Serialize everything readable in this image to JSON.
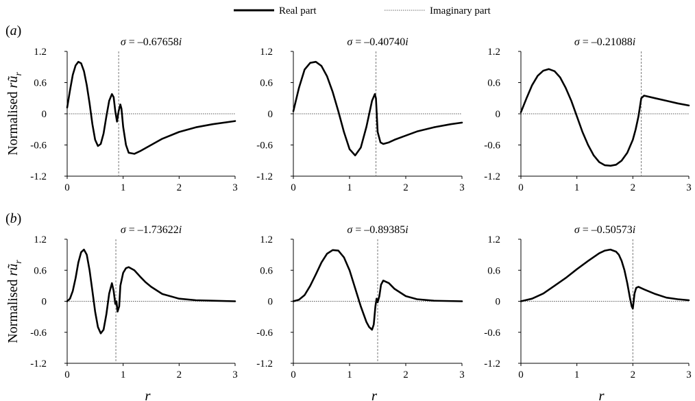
{
  "legend": {
    "real_label": "Real part",
    "imag_label": "Imaginary part"
  },
  "rows": [
    {
      "label_pre": "(",
      "label_letter": "a",
      "label_post": ")"
    },
    {
      "label_pre": "(",
      "label_letter": "b",
      "label_post": ")"
    }
  ],
  "ylabel_pre": "Normalised ",
  "ylabel_r": "r",
  "ylabel_u": "ũ",
  "ylabel_sub": "r",
  "xlabel": "r",
  "chart_data": [
    {
      "type": "line",
      "title_pre": "σ = –",
      "title_val": "0.67658",
      "title_i": "i",
      "xlim": [
        0,
        3
      ],
      "ylim": [
        -1.2,
        1.2
      ],
      "xticks": [
        "0",
        "1",
        "2",
        "3"
      ],
      "yticks": [
        "1.2",
        "0.6",
        "0",
        "-0.6",
        "-1.2"
      ],
      "marker_x": 0.92,
      "series": [
        {
          "name": "Real part",
          "x": [
            0,
            0.05,
            0.1,
            0.15,
            0.2,
            0.25,
            0.3,
            0.35,
            0.4,
            0.45,
            0.5,
            0.55,
            0.6,
            0.65,
            0.7,
            0.75,
            0.8,
            0.83,
            0.86,
            0.89,
            0.92,
            0.95,
            0.97,
            1.0,
            1.05,
            1.1,
            1.2,
            1.3,
            1.5,
            1.7,
            2.0,
            2.3,
            2.6,
            3.0
          ],
          "y": [
            0.12,
            0.45,
            0.75,
            0.93,
            1.0,
            0.97,
            0.82,
            0.55,
            0.2,
            -0.2,
            -0.5,
            -0.62,
            -0.58,
            -0.38,
            -0.05,
            0.25,
            0.38,
            0.32,
            0.05,
            -0.15,
            0.05,
            0.18,
            0.1,
            -0.25,
            -0.6,
            -0.75,
            -0.77,
            -0.72,
            -0.6,
            -0.48,
            -0.35,
            -0.26,
            -0.2,
            -0.14
          ]
        },
        {
          "name": "Imaginary part",
          "x": [
            0,
            3
          ],
          "y": [
            0,
            0
          ]
        }
      ]
    },
    {
      "type": "line",
      "title_pre": "σ = –",
      "title_val": "0.40740",
      "title_i": "i",
      "xlim": [
        0,
        3
      ],
      "ylim": [
        -1.2,
        1.2
      ],
      "xticks": [
        "0",
        "1",
        "2",
        "3"
      ],
      "yticks": [
        "1.2",
        "0.6",
        "0",
        "-0.6",
        "-1.2"
      ],
      "marker_x": 1.47,
      "series": [
        {
          "name": "Real part",
          "x": [
            0,
            0.1,
            0.2,
            0.3,
            0.4,
            0.5,
            0.6,
            0.7,
            0.8,
            0.9,
            1.0,
            1.1,
            1.2,
            1.3,
            1.35,
            1.4,
            1.45,
            1.47,
            1.5,
            1.55,
            1.6,
            1.7,
            1.8,
            2.0,
            2.2,
            2.5,
            2.8,
            3.0
          ],
          "y": [
            0.05,
            0.5,
            0.85,
            0.98,
            1.0,
            0.92,
            0.72,
            0.42,
            0.05,
            -0.35,
            -0.68,
            -0.8,
            -0.65,
            -0.25,
            0.0,
            0.25,
            0.38,
            0.3,
            -0.35,
            -0.55,
            -0.58,
            -0.55,
            -0.5,
            -0.42,
            -0.34,
            -0.26,
            -0.2,
            -0.17
          ]
        },
        {
          "name": "Imaginary part",
          "x": [
            0,
            3
          ],
          "y": [
            0,
            0
          ]
        }
      ]
    },
    {
      "type": "line",
      "title_pre": "σ = –",
      "title_val": "0.21088",
      "title_i": "i",
      "xlim": [
        0,
        3
      ],
      "ylim": [
        -1.2,
        1.2
      ],
      "xticks": [
        "0",
        "1",
        "2",
        "3"
      ],
      "yticks": [
        "1.2",
        "0.6",
        "0",
        "-0.6",
        "-1.2"
      ],
      "marker_x": 2.15,
      "series": [
        {
          "name": "Real part",
          "x": [
            0,
            0.1,
            0.2,
            0.3,
            0.4,
            0.5,
            0.6,
            0.7,
            0.8,
            0.9,
            1.0,
            1.1,
            1.2,
            1.3,
            1.4,
            1.5,
            1.6,
            1.7,
            1.8,
            1.9,
            2.0,
            2.05,
            2.1,
            2.15,
            2.2,
            2.4,
            2.6,
            2.8,
            3.0
          ],
          "y": [
            0.03,
            0.3,
            0.55,
            0.73,
            0.83,
            0.86,
            0.82,
            0.7,
            0.5,
            0.25,
            -0.05,
            -0.35,
            -0.6,
            -0.8,
            -0.93,
            -0.99,
            -1.0,
            -0.98,
            -0.9,
            -0.75,
            -0.5,
            -0.3,
            -0.05,
            0.3,
            0.35,
            0.3,
            0.25,
            0.2,
            0.16
          ]
        },
        {
          "name": "Imaginary part",
          "x": [
            0,
            3
          ],
          "y": [
            0,
            0
          ]
        }
      ]
    },
    {
      "type": "line",
      "title_pre": "σ = –",
      "title_val": "1.73622",
      "title_i": "i",
      "xlim": [
        0,
        3
      ],
      "ylim": [
        -1.2,
        1.2
      ],
      "xticks": [
        "0",
        "1",
        "2",
        "3"
      ],
      "yticks": [
        "1.2",
        "0.6",
        "0",
        "-0.6",
        "-1.2"
      ],
      "marker_x": 0.87,
      "series": [
        {
          "name": "Real part",
          "x": [
            0,
            0.05,
            0.1,
            0.15,
            0.2,
            0.25,
            0.3,
            0.35,
            0.4,
            0.45,
            0.5,
            0.55,
            0.6,
            0.65,
            0.7,
            0.75,
            0.8,
            0.83,
            0.86,
            0.88,
            0.9,
            0.93,
            0.95,
            1.0,
            1.05,
            1.1,
            1.2,
            1.3,
            1.4,
            1.5,
            1.7,
            2.0,
            2.3,
            2.6,
            3.0
          ],
          "y": [
            0,
            0.05,
            0.2,
            0.45,
            0.75,
            0.95,
            1.0,
            0.9,
            0.6,
            0.2,
            -0.2,
            -0.5,
            -0.62,
            -0.55,
            -0.25,
            0.15,
            0.35,
            0.2,
            -0.05,
            0.0,
            -0.2,
            -0.1,
            0.3,
            0.55,
            0.64,
            0.66,
            0.6,
            0.48,
            0.37,
            0.28,
            0.14,
            0.05,
            0.02,
            0.01,
            0.0
          ]
        },
        {
          "name": "Imaginary part",
          "x": [
            0,
            3
          ],
          "y": [
            0,
            0
          ]
        }
      ]
    },
    {
      "type": "line",
      "title_pre": "σ = –",
      "title_val": "0.89385",
      "title_i": "i",
      "xlim": [
        0,
        3
      ],
      "ylim": [
        -1.2,
        1.2
      ],
      "xticks": [
        "0",
        "1",
        "2",
        "3"
      ],
      "yticks": [
        "1.2",
        "0.6",
        "0",
        "-0.6",
        "-1.2"
      ],
      "marker_x": 1.5,
      "series": [
        {
          "name": "Real part",
          "x": [
            0,
            0.1,
            0.2,
            0.3,
            0.4,
            0.5,
            0.6,
            0.7,
            0.8,
            0.9,
            1.0,
            1.1,
            1.2,
            1.3,
            1.35,
            1.4,
            1.43,
            1.46,
            1.48,
            1.5,
            1.53,
            1.56,
            1.6,
            1.7,
            1.8,
            2.0,
            2.2,
            2.5,
            3.0
          ],
          "y": [
            0,
            0.03,
            0.12,
            0.3,
            0.52,
            0.75,
            0.92,
            0.99,
            0.98,
            0.85,
            0.6,
            0.25,
            -0.1,
            -0.4,
            -0.5,
            -0.55,
            -0.45,
            -0.1,
            0.05,
            -0.02,
            0.1,
            0.32,
            0.4,
            0.35,
            0.24,
            0.1,
            0.04,
            0.01,
            0.0
          ]
        },
        {
          "name": "Imaginary part",
          "x": [
            0,
            3
          ],
          "y": [
            0,
            0
          ]
        }
      ]
    },
    {
      "type": "line",
      "title_pre": "σ = –",
      "title_val": "0.50573",
      "title_i": "i",
      "xlim": [
        0,
        3
      ],
      "ylim": [
        -1.2,
        1.2
      ],
      "xticks": [
        "0",
        "1",
        "2",
        "3"
      ],
      "yticks": [
        "1.2",
        "0.6",
        "0",
        "-0.6",
        "-1.2"
      ],
      "marker_x": 2.0,
      "series": [
        {
          "name": "Real part",
          "x": [
            0,
            0.2,
            0.4,
            0.6,
            0.8,
            1.0,
            1.2,
            1.4,
            1.5,
            1.6,
            1.7,
            1.75,
            1.8,
            1.85,
            1.9,
            1.95,
            1.98,
            2.0,
            2.03,
            2.06,
            2.1,
            2.2,
            2.4,
            2.6,
            2.8,
            3.0
          ],
          "y": [
            0,
            0.05,
            0.15,
            0.3,
            0.45,
            0.62,
            0.78,
            0.93,
            0.98,
            1.0,
            0.96,
            0.9,
            0.78,
            0.6,
            0.35,
            0.05,
            -0.1,
            -0.14,
            0.15,
            0.26,
            0.28,
            0.23,
            0.14,
            0.07,
            0.04,
            0.02
          ]
        },
        {
          "name": "Imaginary part",
          "x": [
            0,
            3
          ],
          "y": [
            0,
            0
          ]
        }
      ]
    }
  ]
}
